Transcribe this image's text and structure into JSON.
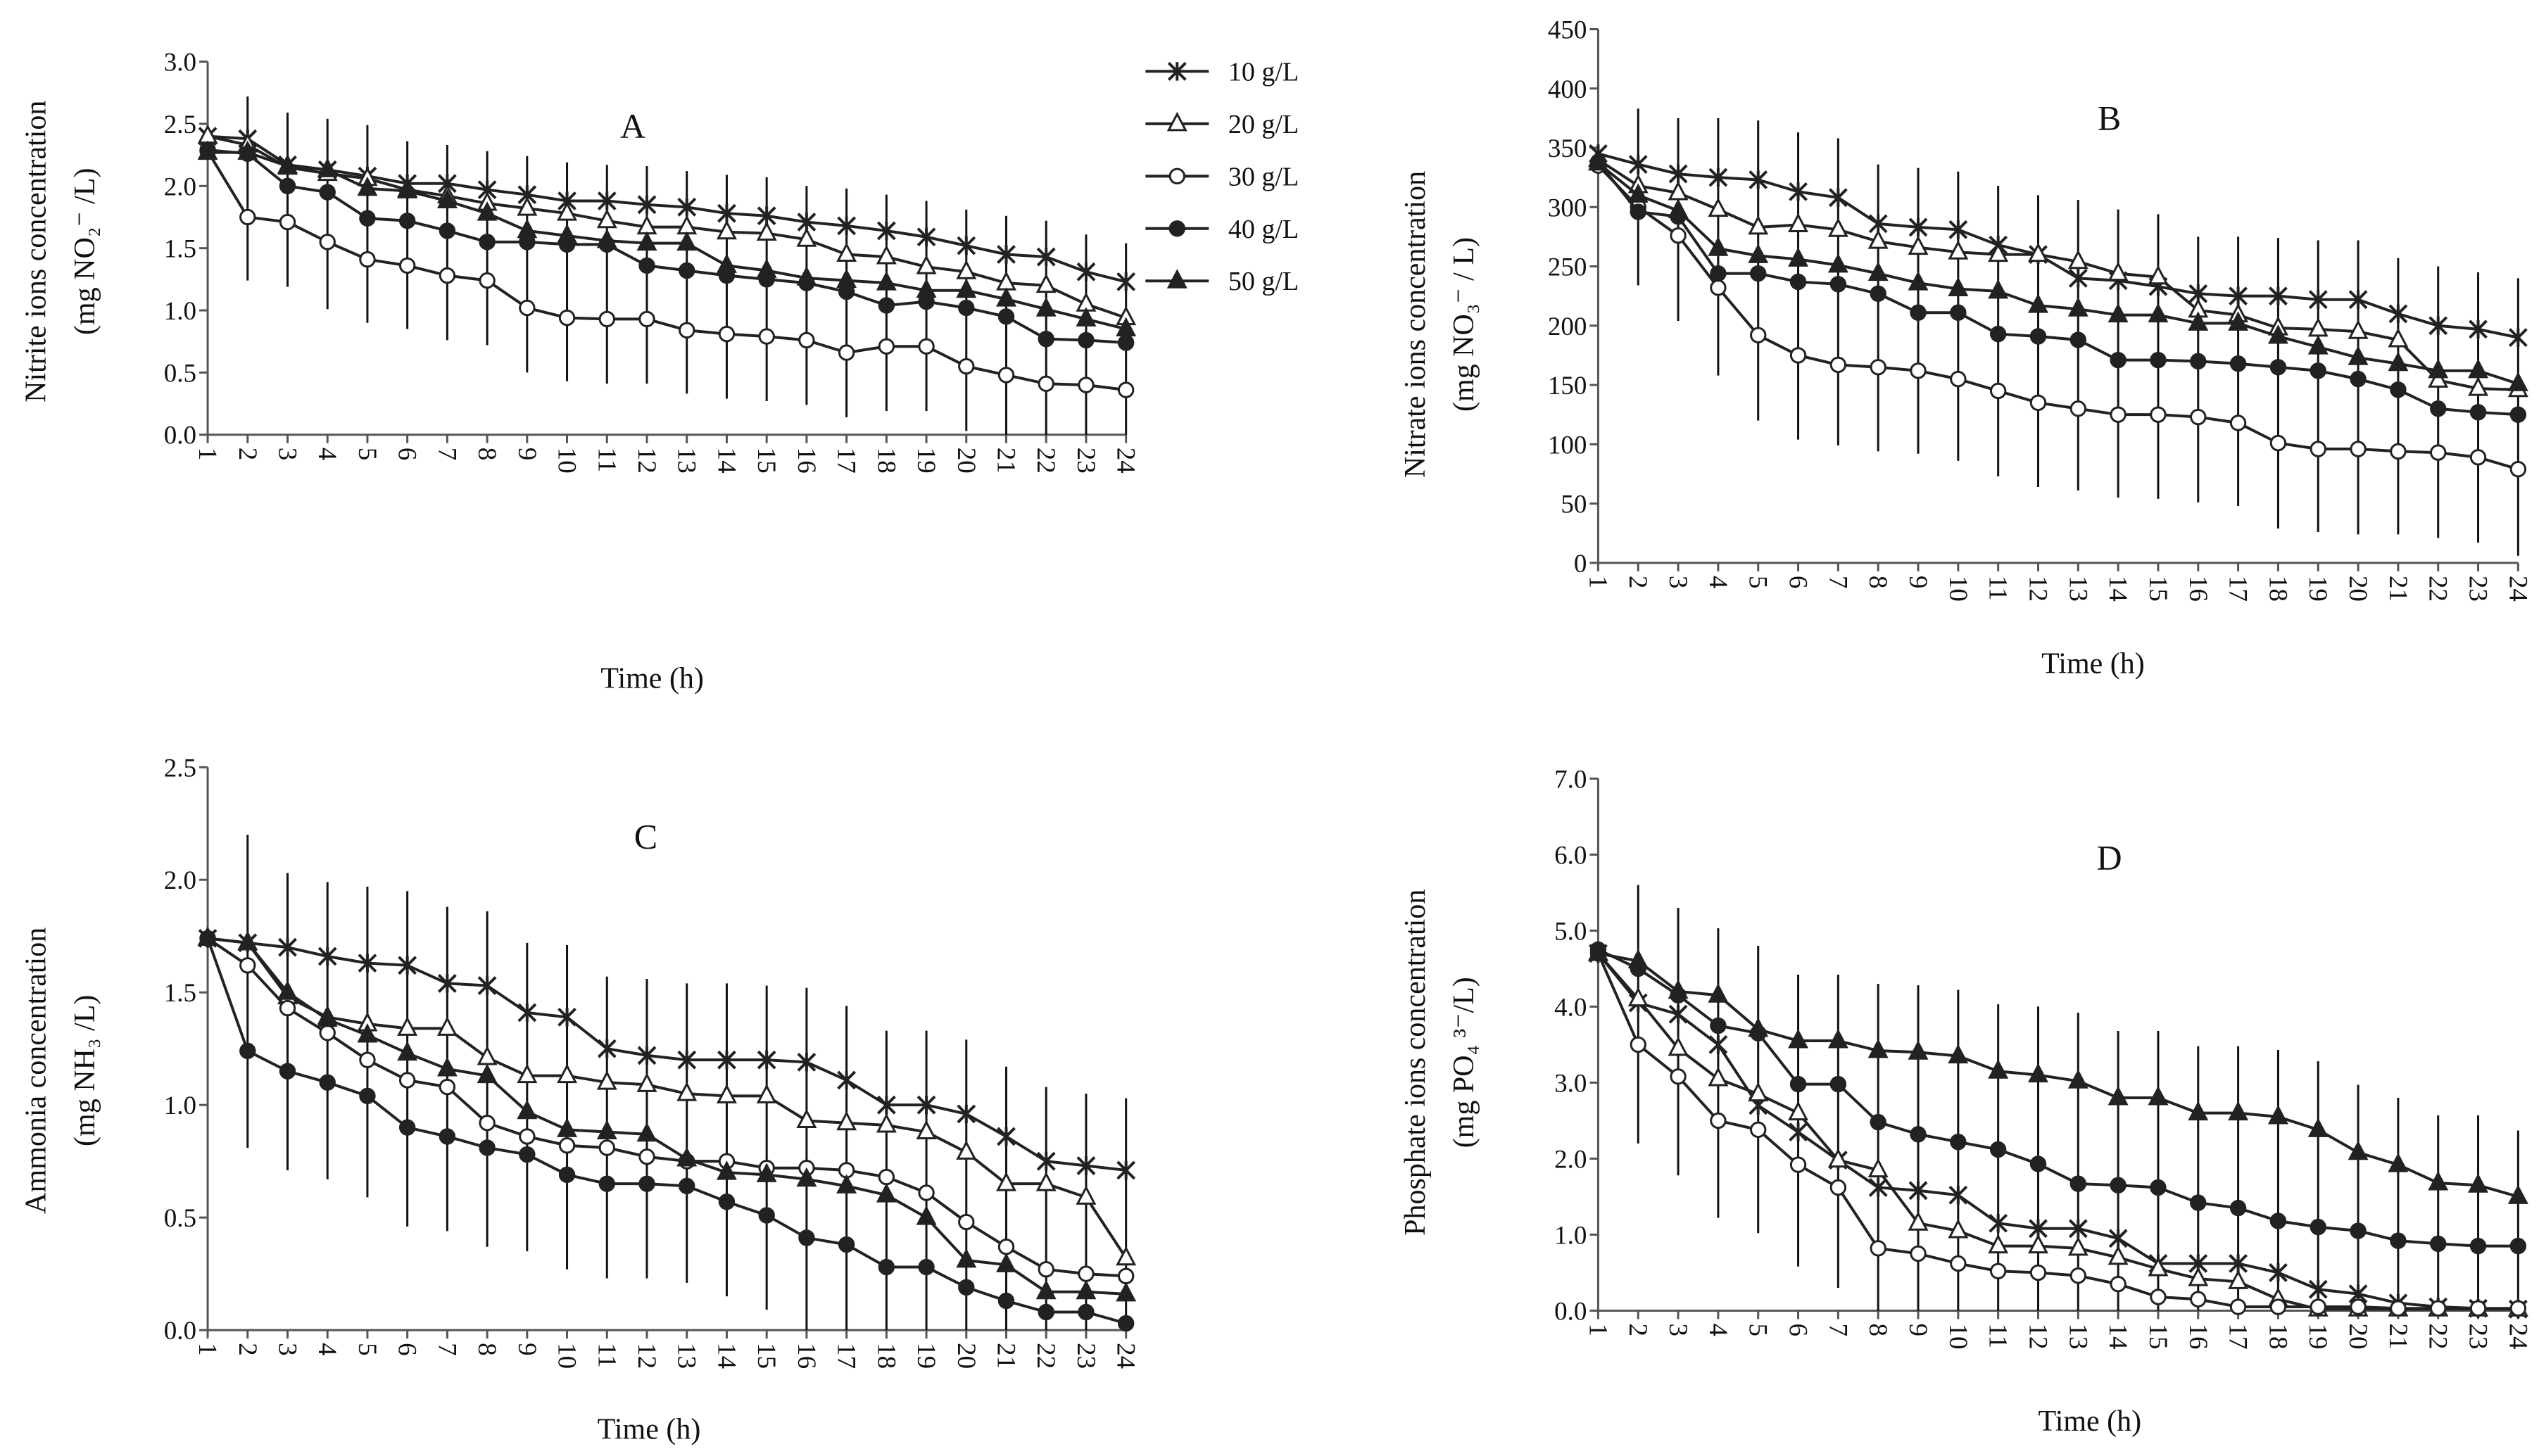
{
  "legend": [
    {
      "label": "10 g/L",
      "marker": "star"
    },
    {
      "label": "20 g/L",
      "marker": "open-triangle"
    },
    {
      "label": "30 g/L",
      "marker": "open-circle"
    },
    {
      "label": "40 g/L",
      "marker": "filled-circle"
    },
    {
      "label": "50 g/L",
      "marker": "filled-triangle"
    }
  ],
  "colors": {
    "line": "#222222",
    "axis": "#555555",
    "errorbar": "#111111"
  },
  "chart_data": [
    {
      "type": "line",
      "panel": "A",
      "title": "A",
      "xlabel": "Time (h)",
      "ylabel": [
        "Nitrite ions concentration",
        "(mg NO₂⁻ /L)"
      ],
      "x": [
        1,
        2,
        3,
        4,
        5,
        6,
        7,
        8,
        9,
        10,
        11,
        12,
        13,
        14,
        15,
        16,
        17,
        18,
        19,
        20,
        21,
        22,
        23,
        24
      ],
      "ylim": [
        0,
        3.0
      ],
      "yticks": [
        "0.0",
        "0.5",
        "1.0",
        "1.5",
        "2.0",
        "2.5",
        "3.0"
      ],
      "ystep": 0.5,
      "series": [
        {
          "name": "10 g/L",
          "values": [
            2.4,
            2.38,
            2.17,
            2.13,
            2.08,
            2.02,
            2.02,
            1.97,
            1.93,
            1.88,
            1.88,
            1.85,
            1.83,
            1.78,
            1.76,
            1.71,
            1.68,
            1.64,
            1.59,
            1.52,
            1.45,
            1.43,
            1.31,
            1.23
          ]
        },
        {
          "name": "20 g/L",
          "values": [
            2.4,
            2.33,
            2.15,
            2.1,
            2.06,
            1.97,
            1.92,
            1.86,
            1.82,
            1.78,
            1.72,
            1.67,
            1.67,
            1.63,
            1.62,
            1.57,
            1.45,
            1.43,
            1.35,
            1.31,
            1.22,
            1.2,
            1.05,
            0.94
          ]
        },
        {
          "name": "30 g/L",
          "values": [
            2.28,
            1.75,
            1.71,
            1.55,
            1.41,
            1.36,
            1.28,
            1.24,
            1.02,
            0.94,
            0.93,
            0.93,
            0.84,
            0.81,
            0.79,
            0.76,
            0.66,
            0.71,
            0.71,
            0.55,
            0.48,
            0.41,
            0.4,
            0.36
          ]
        },
        {
          "name": "40 g/L",
          "values": [
            2.29,
            2.26,
            2.0,
            1.95,
            1.74,
            1.72,
            1.64,
            1.55,
            1.55,
            1.53,
            1.53,
            1.36,
            1.32,
            1.28,
            1.25,
            1.22,
            1.15,
            1.04,
            1.07,
            1.02,
            0.95,
            0.77,
            0.76,
            0.74
          ]
        },
        {
          "name": "50 g/L",
          "values": [
            2.27,
            2.27,
            2.16,
            2.13,
            1.98,
            1.96,
            1.88,
            1.78,
            1.64,
            1.6,
            1.56,
            1.54,
            1.54,
            1.36,
            1.32,
            1.26,
            1.24,
            1.22,
            1.16,
            1.16,
            1.09,
            1.01,
            0.93,
            0.85
          ]
        }
      ],
      "error_ranges": [
        null,
        [
          1.24,
          2.72
        ],
        [
          1.19,
          2.59
        ],
        [
          1.01,
          2.54
        ],
        [
          0.9,
          2.49
        ],
        [
          0.85,
          2.36
        ],
        [
          0.76,
          2.33
        ],
        [
          0.72,
          2.28
        ],
        [
          0.5,
          2.24
        ],
        [
          0.43,
          2.19
        ],
        [
          0.41,
          2.17
        ],
        [
          0.41,
          2.16
        ],
        [
          0.33,
          2.12
        ],
        [
          0.29,
          2.09
        ],
        [
          0.27,
          2.07
        ],
        [
          0.24,
          2.0
        ],
        [
          0.14,
          1.98
        ],
        [
          0.19,
          1.93
        ],
        [
          0.19,
          1.88
        ],
        [
          0.03,
          1.81
        ],
        [
          0,
          1.76
        ],
        [
          0,
          1.72
        ],
        [
          0,
          1.61
        ],
        [
          0,
          1.54
        ]
      ]
    },
    {
      "type": "line",
      "panel": "B",
      "title": "B",
      "xlabel": "Time (h)",
      "ylabel": [
        "Nitrate ions concentration",
        "(mg NO₃⁻ / L)"
      ],
      "x": [
        1,
        2,
        3,
        4,
        5,
        6,
        7,
        8,
        9,
        10,
        11,
        12,
        13,
        14,
        15,
        16,
        17,
        18,
        19,
        20,
        21,
        22,
        23,
        24
      ],
      "ylim": [
        0,
        450
      ],
      "yticks": [
        "0",
        "50",
        "100",
        "150",
        "200",
        "250",
        "300",
        "350",
        "400",
        "450"
      ],
      "ystep": 50,
      "series": [
        {
          "name": "10 g/L",
          "values": [
            345,
            336,
            328,
            325,
            323,
            313,
            308,
            286,
            283,
            281,
            268,
            260,
            240,
            238,
            233,
            227,
            225,
            225,
            222,
            222,
            210,
            200,
            197,
            190
          ]
        },
        {
          "name": "20 g/L",
          "values": [
            340,
            318,
            312,
            298,
            283,
            285,
            281,
            271,
            266,
            262,
            260,
            260,
            254,
            244,
            241,
            213,
            209,
            198,
            197,
            195,
            188,
            154,
            147,
            146
          ]
        },
        {
          "name": "30 g/L",
          "values": [
            335,
            300,
            276,
            232,
            192,
            175,
            167,
            165,
            162,
            155,
            145,
            135,
            130,
            125,
            125,
            123,
            118,
            101,
            96,
            96,
            94,
            93,
            89,
            79
          ]
        },
        {
          "name": "40 g/L",
          "values": [
            338,
            296,
            292,
            244,
            244,
            237,
            235,
            227,
            211,
            211,
            193,
            191,
            188,
            171,
            171,
            170,
            168,
            165,
            162,
            155,
            146,
            130,
            127,
            125
          ]
        },
        {
          "name": "50 g/L",
          "values": [
            337,
            310,
            297,
            265,
            259,
            256,
            251,
            244,
            236,
            231,
            229,
            217,
            214,
            209,
            209,
            202,
            202,
            191,
            182,
            173,
            168,
            162,
            162,
            151
          ]
        }
      ],
      "error_ranges": [
        null,
        [
          234,
          383
        ],
        [
          204,
          375
        ],
        [
          158,
          375
        ],
        [
          120,
          373
        ],
        [
          104,
          363
        ],
        [
          99,
          358
        ],
        [
          94,
          336
        ],
        [
          92,
          333
        ],
        [
          86,
          330
        ],
        [
          73,
          318
        ],
        [
          64,
          310
        ],
        [
          61,
          306
        ],
        [
          55,
          298
        ],
        [
          54,
          294
        ],
        [
          51,
          275
        ],
        [
          48,
          275
        ],
        [
          29,
          274
        ],
        [
          26,
          272
        ],
        [
          24,
          272
        ],
        [
          24,
          257
        ],
        [
          21,
          250
        ],
        [
          17,
          245
        ],
        [
          6,
          240
        ]
      ]
    },
    {
      "type": "line",
      "panel": "C",
      "title": "C",
      "xlabel": "Time (h)",
      "ylabel": [
        "Ammonia concentration",
        "(mg NH₃ /L)"
      ],
      "x": [
        1,
        2,
        3,
        4,
        5,
        6,
        7,
        8,
        9,
        10,
        11,
        12,
        13,
        14,
        15,
        16,
        17,
        18,
        19,
        20,
        21,
        22,
        23,
        24
      ],
      "ylim": [
        0,
        2.5
      ],
      "yticks": [
        "0.0",
        "0.5",
        "1.0",
        "1.5",
        "2.0",
        "2.5"
      ],
      "ystep": 0.5,
      "series": [
        {
          "name": "10 g/L",
          "values": [
            1.74,
            1.72,
            1.7,
            1.66,
            1.63,
            1.62,
            1.54,
            1.53,
            1.41,
            1.39,
            1.25,
            1.22,
            1.2,
            1.2,
            1.2,
            1.19,
            1.11,
            1.0,
            1.0,
            0.96,
            0.86,
            0.75,
            0.73,
            0.71
          ]
        },
        {
          "name": "20 g/L",
          "values": [
            1.74,
            1.72,
            1.48,
            1.39,
            1.36,
            1.34,
            1.34,
            1.21,
            1.13,
            1.13,
            1.1,
            1.09,
            1.05,
            1.04,
            1.04,
            0.93,
            0.92,
            0.91,
            0.88,
            0.79,
            0.65,
            0.65,
            0.59,
            0.32
          ]
        },
        {
          "name": "30 g/L",
          "values": [
            1.74,
            1.62,
            1.43,
            1.32,
            1.2,
            1.11,
            1.08,
            0.92,
            0.86,
            0.82,
            0.81,
            0.77,
            0.75,
            0.75,
            0.72,
            0.72,
            0.71,
            0.68,
            0.61,
            0.48,
            0.37,
            0.27,
            0.25,
            0.24
          ]
        },
        {
          "name": "40 g/L",
          "values": [
            1.74,
            1.24,
            1.15,
            1.1,
            1.04,
            0.9,
            0.86,
            0.81,
            0.78,
            0.69,
            0.65,
            0.65,
            0.64,
            0.57,
            0.51,
            0.41,
            0.38,
            0.28,
            0.28,
            0.19,
            0.13,
            0.08,
            0.08,
            0.03
          ]
        },
        {
          "name": "50 g/L",
          "values": [
            1.74,
            1.72,
            1.5,
            1.38,
            1.31,
            1.23,
            1.16,
            1.13,
            0.97,
            0.89,
            0.88,
            0.87,
            0.76,
            0.7,
            0.69,
            0.67,
            0.64,
            0.6,
            0.5,
            0.31,
            0.29,
            0.17,
            0.17,
            0.16
          ]
        }
      ],
      "error_ranges": [
        null,
        [
          0.81,
          2.2
        ],
        [
          0.71,
          2.03
        ],
        [
          0.67,
          1.99
        ],
        [
          0.59,
          1.97
        ],
        [
          0.46,
          1.95
        ],
        [
          0.44,
          1.88
        ],
        [
          0.37,
          1.86
        ],
        [
          0.35,
          1.72
        ],
        [
          0.27,
          1.71
        ],
        [
          0.23,
          1.57
        ],
        [
          0.23,
          1.56
        ],
        [
          0.21,
          1.54
        ],
        [
          0.15,
          1.54
        ],
        [
          0.09,
          1.53
        ],
        [
          0,
          1.52
        ],
        [
          0,
          1.44
        ],
        [
          0,
          1.33
        ],
        [
          0,
          1.33
        ],
        [
          0,
          1.29
        ],
        [
          0,
          1.17
        ],
        [
          0,
          1.08
        ],
        [
          0,
          1.05
        ],
        [
          0,
          1.03
        ]
      ]
    },
    {
      "type": "line",
      "panel": "D",
      "title": "D",
      "xlabel": "Time (h)",
      "ylabel": [
        "Phosphate ions concentration",
        "(mg PO₄ ³⁻/L)"
      ],
      "x": [
        1,
        2,
        3,
        4,
        5,
        6,
        7,
        8,
        9,
        10,
        11,
        12,
        13,
        14,
        15,
        16,
        17,
        18,
        19,
        20,
        21,
        22,
        23,
        24
      ],
      "ylim": [
        0,
        7.0
      ],
      "yticks": [
        "0.0",
        "1.0",
        "2.0",
        "3.0",
        "4.0",
        "5.0",
        "6.0",
        "7.0"
      ],
      "ystep": 1.0,
      "series": [
        {
          "name": "10 g/L",
          "values": [
            4.7,
            4.05,
            3.9,
            3.5,
            2.7,
            2.35,
            1.98,
            1.62,
            1.58,
            1.52,
            1.15,
            1.08,
            1.08,
            0.95,
            0.62,
            0.62,
            0.62,
            0.5,
            0.28,
            0.22,
            0.1,
            0.05,
            0.03,
            0.02
          ]
        },
        {
          "name": "20 g/L",
          "values": [
            4.7,
            4.1,
            3.45,
            3.05,
            2.85,
            2.6,
            1.98,
            1.85,
            1.15,
            1.05,
            0.85,
            0.85,
            0.82,
            0.7,
            0.55,
            0.42,
            0.38,
            0.15,
            0.02,
            0.02,
            0.02,
            0.02,
            0.02,
            0.02
          ]
        },
        {
          "name": "30 g/L",
          "values": [
            4.7,
            3.5,
            3.08,
            2.5,
            2.38,
            1.92,
            1.62,
            0.82,
            0.75,
            0.62,
            0.52,
            0.5,
            0.46,
            0.35,
            0.18,
            0.15,
            0.05,
            0.05,
            0.05,
            0.05,
            0.03,
            0.03,
            0.03,
            0.03
          ]
        },
        {
          "name": "40 g/L",
          "values": [
            4.75,
            4.5,
            4.15,
            3.75,
            3.65,
            2.98,
            2.98,
            2.48,
            2.32,
            2.22,
            2.12,
            1.93,
            1.67,
            1.65,
            1.62,
            1.42,
            1.35,
            1.18,
            1.1,
            1.05,
            0.92,
            0.88,
            0.85,
            0.85
          ]
        },
        {
          "name": "50 g/L",
          "values": [
            4.7,
            4.6,
            4.2,
            4.15,
            3.7,
            3.55,
            3.55,
            3.42,
            3.4,
            3.35,
            3.15,
            3.1,
            3.02,
            2.8,
            2.8,
            2.6,
            2.6,
            2.55,
            2.38,
            2.08,
            1.92,
            1.68,
            1.65,
            1.5
          ]
        }
      ],
      "error_ranges": [
        null,
        [
          2.2,
          5.6
        ],
        [
          1.78,
          5.3
        ],
        [
          1.22,
          5.03
        ],
        [
          1.02,
          4.8
        ],
        [
          0.58,
          4.42
        ],
        [
          0.3,
          4.42
        ],
        [
          0,
          4.3
        ],
        [
          0,
          4.28
        ],
        [
          0,
          4.22
        ],
        [
          0,
          4.03
        ],
        [
          0,
          4.0
        ],
        [
          0,
          3.92
        ],
        [
          0,
          3.68
        ],
        [
          0,
          3.68
        ],
        [
          0,
          3.48
        ],
        [
          0,
          3.48
        ],
        [
          0,
          3.43
        ],
        [
          0,
          3.28
        ],
        [
          0,
          2.97
        ],
        [
          0,
          2.8
        ],
        [
          0,
          2.57
        ],
        [
          0,
          2.57
        ],
        [
          0,
          2.37
        ]
      ]
    }
  ]
}
